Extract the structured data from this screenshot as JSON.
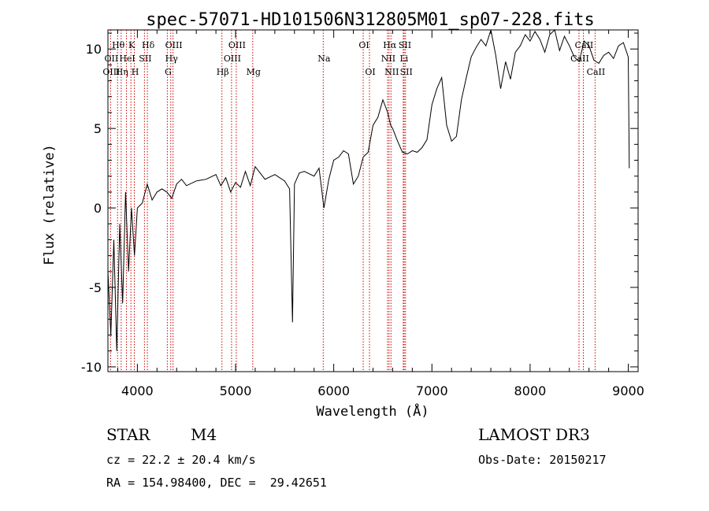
{
  "chart_data": {
    "type": "line",
    "title": "spec-57071-HD101506N312805M01_sp07-228.fits",
    "xlabel": "Wavelength (Å)",
    "ylabel": "Flux (relative)",
    "xlim": [
      3700,
      9100
    ],
    "ylim": [
      -10.3,
      11.2
    ],
    "xticks": [
      4000,
      5000,
      6000,
      7000,
      8000,
      9000
    ],
    "yticks": [
      -10,
      -5,
      0,
      5,
      10
    ],
    "series": [
      {
        "name": "spectrum",
        "x": [
          3700,
          3730,
          3760,
          3790,
          3820,
          3850,
          3880,
          3910,
          3940,
          3970,
          4000,
          4050,
          4100,
          4150,
          4200,
          4250,
          4300,
          4350,
          4400,
          4450,
          4500,
          4600,
          4700,
          4800,
          4850,
          4900,
          4950,
          5000,
          5050,
          5100,
          5150,
          5200,
          5300,
          5400,
          5500,
          5550,
          5580,
          5600,
          5650,
          5700,
          5800,
          5850,
          5900,
          5950,
          6000,
          6050,
          6100,
          6150,
          6200,
          6250,
          6300,
          6350,
          6400,
          6450,
          6500,
          6550,
          6580,
          6600,
          6650,
          6700,
          6750,
          6800,
          6850,
          6900,
          6950,
          7000,
          7050,
          7100,
          7150,
          7200,
          7250,
          7300,
          7350,
          7400,
          7450,
          7500,
          7550,
          7600,
          7650,
          7700,
          7750,
          7800,
          7850,
          7900,
          7950,
          8000,
          8050,
          8100,
          8150,
          8200,
          8250,
          8300,
          8350,
          8400,
          8450,
          8500,
          8550,
          8600,
          8650,
          8700,
          8750,
          8800,
          8850,
          8900,
          8950,
          9000,
          9010
        ],
        "y": [
          -4,
          -8,
          -2,
          -9,
          -1,
          -6,
          1,
          -4,
          0,
          -3,
          0,
          0.3,
          1.5,
          0.5,
          1,
          1.2,
          1,
          0.6,
          1.5,
          1.8,
          1.4,
          1.7,
          1.8,
          2.1,
          1.4,
          1.9,
          1,
          1.6,
          1.3,
          2.3,
          1.4,
          2.6,
          1.8,
          2.1,
          1.7,
          1.2,
          -7.2,
          1.5,
          2.2,
          2.3,
          2,
          2.5,
          0,
          1.8,
          3,
          3.2,
          3.6,
          3.4,
          1.5,
          2,
          3.2,
          3.5,
          5.2,
          5.7,
          6.8,
          6,
          5.2,
          5,
          4.2,
          3.5,
          3.4,
          3.6,
          3.5,
          3.8,
          4.3,
          6.5,
          7.5,
          8.2,
          5.2,
          4.2,
          4.5,
          6.8,
          8.2,
          9.5,
          10.1,
          10.6,
          10.2,
          11.5,
          9.6,
          7.5,
          9.2,
          8.1,
          9.8,
          10.2,
          10.9,
          10.5,
          11.1,
          10.6,
          9.8,
          10.9,
          11.2,
          9.9,
          10.8,
          10.2,
          9.5,
          9.2,
          10.5,
          10.2,
          9.3,
          9.1,
          9.6,
          9.8,
          9.4,
          10.2,
          10.4,
          9.5,
          2.5
        ]
      }
    ],
    "line_markers": [
      {
        "label": "Hθ",
        "wavelength": 3798,
        "row": 0
      },
      {
        "label": "K",
        "wavelength": 3934,
        "row": 0
      },
      {
        "label": "Hδ",
        "wavelength": 4102,
        "row": 0
      },
      {
        "label": "OIII",
        "wavelength": 4363,
        "row": 0
      },
      {
        "label": "OIII",
        "wavelength": 5007,
        "row": 0
      },
      {
        "label": "OI",
        "wavelength": 6300,
        "row": 0
      },
      {
        "label": "Hα",
        "wavelength": 6563,
        "row": 0
      },
      {
        "label": "SII",
        "wavelength": 6717,
        "row": 0
      },
      {
        "label": "CaII",
        "wavelength": 8542,
        "row": 0
      },
      {
        "label": "OII",
        "wavelength": 3727,
        "row": 1
      },
      {
        "label": "HeI",
        "wavelength": 3889,
        "row": 1
      },
      {
        "label": "SII",
        "wavelength": 4072,
        "row": 1
      },
      {
        "label": "Hγ",
        "wavelength": 4340,
        "row": 1
      },
      {
        "label": "OIII",
        "wavelength": 4959,
        "row": 1
      },
      {
        "label": "Na",
        "wavelength": 5893,
        "row": 1
      },
      {
        "label": "NII",
        "wavelength": 6548,
        "row": 1
      },
      {
        "label": "Li",
        "wavelength": 6708,
        "row": 1
      },
      {
        "label": "CaII",
        "wavelength": 8498,
        "row": 1
      },
      {
        "label": "OIII",
        "wavelength": 3727,
        "row": 2
      },
      {
        "label": "Hη",
        "wavelength": 3835,
        "row": 2
      },
      {
        "label": "H",
        "wavelength": 3969,
        "row": 2
      },
      {
        "label": "G",
        "wavelength": 4305,
        "row": 2
      },
      {
        "label": "Hβ",
        "wavelength": 4861,
        "row": 2
      },
      {
        "label": "Mg",
        "wavelength": 5175,
        "row": 2
      },
      {
        "label": "OI",
        "wavelength": 6364,
        "row": 2
      },
      {
        "label": "NII",
        "wavelength": 6583,
        "row": 2
      },
      {
        "label": "SII",
        "wavelength": 6731,
        "row": 2
      },
      {
        "label": "CaII",
        "wavelength": 8662,
        "row": 2
      }
    ],
    "marker_lines": [
      3727,
      3798,
      3835,
      3889,
      3934,
      3969,
      4072,
      4102,
      4305,
      4340,
      4363,
      4861,
      4959,
      5007,
      5175,
      5893,
      6300,
      6364,
      6548,
      6563,
      6583,
      6708,
      6717,
      6731,
      8498,
      8542,
      8662
    ]
  },
  "info": {
    "object_class": "STAR",
    "subclass": "M4",
    "survey": "LAMOST DR3",
    "cz": "cz = 22.2 ± 20.4 km/s",
    "obs_date": "Obs-Date: 20150217",
    "coords": "RA = 154.98400, DEC =  29.42651"
  },
  "colors": {
    "spectrum": "#000000",
    "marker_line": "#cc0000"
  }
}
